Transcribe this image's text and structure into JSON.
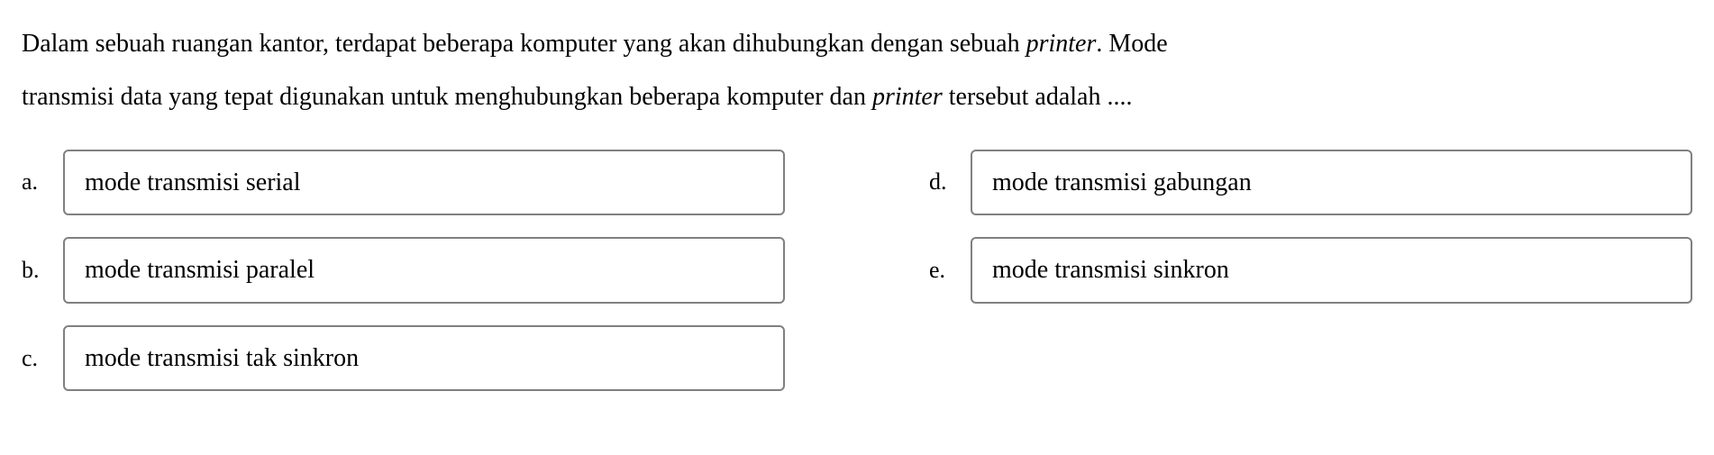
{
  "question": {
    "line1a": "Dalam sebuah ruangan kantor, terdapat beberapa komputer yang akan dihubungkan dengan sebuah ",
    "line1_em": "printer",
    "line1b": ". Mode",
    "line2a": "transmisi data yang tepat digunakan untuk menghubungkan beberapa komputer dan ",
    "line2_em": "printer",
    "line2b": " tersebut adalah ....",
    "fontsize": 28,
    "text_color": "#000000"
  },
  "options": {
    "a": {
      "letter": "a.",
      "text": "mode transmisi serial"
    },
    "b": {
      "letter": "b.",
      "text": "mode transmisi paralel"
    },
    "c": {
      "letter": "c.",
      "text": "mode transmisi tak sinkron"
    },
    "d": {
      "letter": "d.",
      "text": "mode transmisi gabungan"
    },
    "e": {
      "letter": "e.",
      "text": "mode transmisi sinkron"
    },
    "box_border_color": "#808080",
    "box_border_radius": 6,
    "box_background": "#ffffff",
    "fontsize": 28
  },
  "background_color": "#ffffff"
}
